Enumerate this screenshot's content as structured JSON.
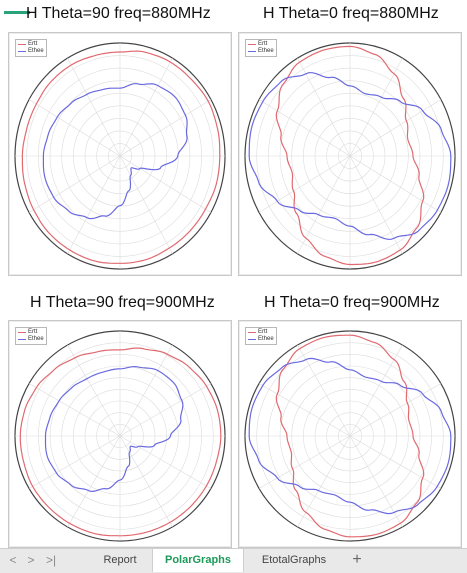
{
  "headings": [
    "H Theta=90 freq=880MHz",
    "H Theta=0 freq=880MHz",
    "H Theta=90 freq=900MHz",
    "H Theta=0 freq=900MHz"
  ],
  "legend": [
    "Ertt",
    "Ethee"
  ],
  "colors": {
    "ephi": "#e06a70",
    "etheta": "#6a6ae0",
    "accent": "#2aa27a",
    "active_tab": "#1d9a5a"
  },
  "tabs": {
    "nav": [
      "<",
      ">",
      ">|"
    ],
    "items": [
      "Report",
      "PolarGraphs",
      "EtotalGraphs"
    ],
    "active": "PolarGraphs",
    "add": "+"
  },
  "chart_data": [
    {
      "type": "polar",
      "title": "H Theta=90 freq=880MHz",
      "series": [
        {
          "name": "Ertt",
          "r": [
            0.92,
            0.95,
            0.96,
            0.96,
            0.97,
            0.96,
            0.95,
            0.95,
            0.94,
            0.94,
            0.94,
            0.95,
            0.95,
            0.96,
            0.96,
            0.96,
            0.95,
            0.94,
            0.93,
            0.92,
            0.92,
            0.93,
            0.93,
            0.92
          ]
        },
        {
          "name": "Ethee",
          "r": [
            0.6,
            0.66,
            0.72,
            0.74,
            0.72,
            0.66,
            0.55,
            0.4,
            0.22,
            0.15,
            0.2,
            0.32,
            0.44,
            0.55,
            0.63,
            0.69,
            0.73,
            0.74,
            0.73,
            0.71,
            0.69,
            0.66,
            0.63,
            0.61
          ]
        }
      ]
    },
    {
      "type": "polar",
      "title": "H Theta=0 freq=880MHz",
      "series": [
        {
          "name": "Ertt",
          "r": [
            0.97,
            0.93,
            0.84,
            0.72,
            0.62,
            0.57,
            0.6,
            0.68,
            0.8,
            0.9,
            0.96,
            0.97,
            0.96,
            0.92,
            0.84,
            0.72,
            0.62,
            0.57,
            0.6,
            0.68,
            0.8,
            0.9,
            0.96,
            0.97
          ]
        },
        {
          "name": "Ethee",
          "r": [
            0.62,
            0.57,
            0.6,
            0.68,
            0.8,
            0.9,
            0.96,
            0.97,
            0.96,
            0.93,
            0.84,
            0.72,
            0.62,
            0.57,
            0.6,
            0.68,
            0.8,
            0.9,
            0.96,
            0.97,
            0.96,
            0.93,
            0.84,
            0.72
          ]
        }
      ]
    },
    {
      "type": "polar",
      "title": "H Theta=90 freq=900MHz",
      "series": [
        {
          "name": "Ertt",
          "r": [
            0.82,
            0.86,
            0.9,
            0.93,
            0.95,
            0.96,
            0.96,
            0.95,
            0.95,
            0.95,
            0.95,
            0.95,
            0.95,
            0.96,
            0.96,
            0.96,
            0.96,
            0.95,
            0.95,
            0.94,
            0.92,
            0.89,
            0.86,
            0.83
          ]
        },
        {
          "name": "Ethee",
          "r": [
            0.64,
            0.68,
            0.72,
            0.72,
            0.68,
            0.6,
            0.48,
            0.34,
            0.2,
            0.14,
            0.18,
            0.3,
            0.42,
            0.52,
            0.6,
            0.66,
            0.7,
            0.72,
            0.71,
            0.69,
            0.67,
            0.65,
            0.63,
            0.63
          ]
        }
      ]
    },
    {
      "type": "polar",
      "title": "H Theta=0 freq=900MHz",
      "series": [
        {
          "name": "Ertt",
          "r": [
            0.96,
            0.92,
            0.84,
            0.73,
            0.63,
            0.58,
            0.6,
            0.68,
            0.8,
            0.9,
            0.96,
            0.97,
            0.96,
            0.92,
            0.84,
            0.73,
            0.63,
            0.58,
            0.6,
            0.68,
            0.8,
            0.9,
            0.96,
            0.97
          ]
        },
        {
          "name": "Ethee",
          "r": [
            0.63,
            0.58,
            0.6,
            0.68,
            0.8,
            0.9,
            0.96,
            0.97,
            0.96,
            0.92,
            0.84,
            0.73,
            0.63,
            0.58,
            0.6,
            0.68,
            0.8,
            0.9,
            0.96,
            0.97,
            0.96,
            0.92,
            0.84,
            0.73
          ]
        }
      ]
    }
  ]
}
